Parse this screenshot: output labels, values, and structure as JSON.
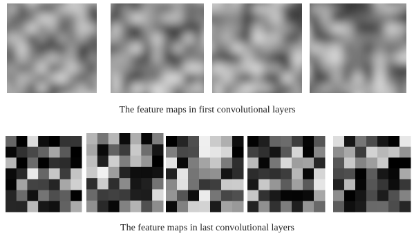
{
  "figure": {
    "captions": [
      "The feature maps in first convolutional layers",
      "The feature maps in last convolutional layers"
    ]
  }
}
